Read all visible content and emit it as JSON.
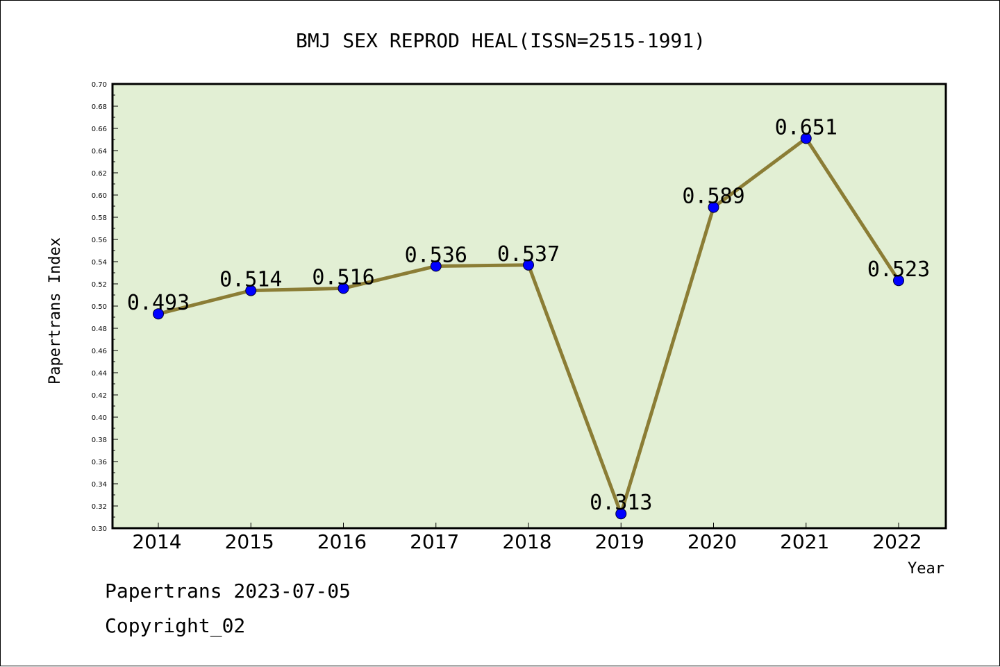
{
  "chart_data": {
    "type": "line",
    "title": "BMJ SEX REPROD HEAL(ISSN=2515-1991)",
    "xlabel": "Year",
    "ylabel": "Papertrans Index",
    "categories": [
      "2014",
      "2015",
      "2016",
      "2017",
      "2018",
      "2019",
      "2020",
      "2021",
      "2022"
    ],
    "values": [
      0.493,
      0.514,
      0.516,
      0.536,
      0.537,
      0.313,
      0.589,
      0.651,
      0.523
    ],
    "data_labels": [
      "0.493",
      "0.514",
      "0.516",
      "0.536",
      "0.537",
      "0.313",
      "0.589",
      "0.651",
      "0.523"
    ],
    "ylim": [
      0.3,
      0.7
    ],
    "yticks": [
      "0.30",
      "0.32",
      "0.34",
      "0.36",
      "0.38",
      "0.40",
      "0.42",
      "0.44",
      "0.46",
      "0.48",
      "0.50",
      "0.52",
      "0.54",
      "0.56",
      "0.58",
      "0.60",
      "0.62",
      "0.64",
      "0.66",
      "0.68",
      "0.70"
    ],
    "grid": false,
    "colors": {
      "plot_background": "#e2efd4",
      "line": "#8b7d35",
      "marker": "#0000ff"
    }
  },
  "footer": {
    "line1": "Papertrans 2023-07-05",
    "line2": "Copyright_02"
  }
}
